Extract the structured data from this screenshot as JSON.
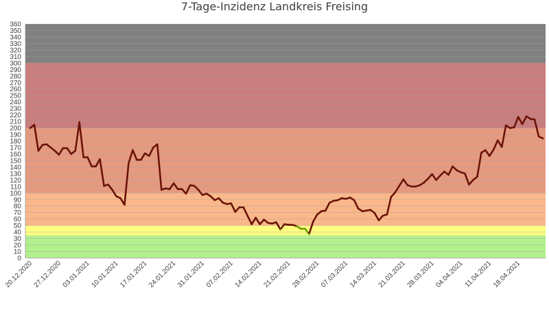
{
  "colors": {
    "band_gray": "#808080",
    "band_darkred": "#c97d7d",
    "band_salmon": "#e59a80",
    "band_orange": "#f9b88a",
    "band_yellow": "#ffff80",
    "band_green": "#b3f08e",
    "line_dark": "#6b1308",
    "line_green": "#6d9c00",
    "grid": "#a89c9c"
  },
  "chart_data": {
    "type": "line",
    "title": "7-Tage-Inzidenz Landkreis Freising",
    "xlabel": "",
    "ylabel": "",
    "ylim": [
      0,
      360
    ],
    "yticks": [
      0,
      10,
      20,
      30,
      40,
      50,
      60,
      70,
      80,
      90,
      100,
      110,
      120,
      130,
      140,
      150,
      160,
      170,
      180,
      190,
      200,
      210,
      220,
      230,
      240,
      250,
      260,
      270,
      280,
      290,
      300,
      310,
      320,
      330,
      340,
      350,
      360
    ],
    "xticks": [
      "20.12.2020",
      "27.12.2020",
      "03.01.2021",
      "10.01.2021",
      "17.01.2021",
      "24.01.2021",
      "31.01.2021",
      "07.02.2021",
      "14.02.2021",
      "21.02.2021",
      "28.02.2021",
      "07.03.2021",
      "14.03.2021",
      "21.03.2021",
      "28.03.2021",
      "04.04.2021",
      "11.04.2021",
      "18.04.2021"
    ],
    "bands": [
      {
        "from": 0,
        "to": 35,
        "color": "#b3f08e"
      },
      {
        "from": 35,
        "to": 50,
        "color": "#ffff80"
      },
      {
        "from": 50,
        "to": 100,
        "color": "#f9b88a"
      },
      {
        "from": 100,
        "to": 200,
        "color": "#e59a80"
      },
      {
        "from": 200,
        "to": 300,
        "color": "#c97d7d"
      },
      {
        "from": 300,
        "to": 360,
        "color": "#808080"
      }
    ],
    "grid": true,
    "legend": "none",
    "series": [
      {
        "values": [
          200,
          205,
          165,
          174,
          175,
          170,
          165,
          159,
          169,
          169,
          160,
          165,
          209,
          155,
          155,
          141,
          141,
          152,
          111,
          113,
          105,
          95,
          92,
          82,
          146,
          166,
          151,
          151,
          161,
          157,
          170,
          175,
          105,
          107,
          106,
          115,
          106,
          106,
          99,
          112,
          111,
          105,
          97,
          99,
          95,
          89,
          92,
          85,
          83,
          84,
          71,
          78,
          78,
          65,
          52,
          62,
          52,
          59,
          54,
          53,
          55,
          44,
          52,
          51,
          51,
          49,
          45,
          45,
          37,
          56,
          67,
          72,
          73,
          85,
          88,
          89,
          92,
          91,
          93,
          89,
          76,
          72,
          73,
          74,
          69,
          58,
          65,
          67,
          94,
          101,
          111,
          121,
          112,
          110,
          110,
          112,
          116,
          122,
          129,
          120,
          127,
          133,
          128,
          141,
          135,
          132,
          130,
          113,
          120,
          125,
          162,
          166,
          157,
          167,
          181,
          171,
          204,
          200,
          201,
          217,
          206,
          218,
          214,
          213,
          187,
          184
        ]
      }
    ]
  }
}
